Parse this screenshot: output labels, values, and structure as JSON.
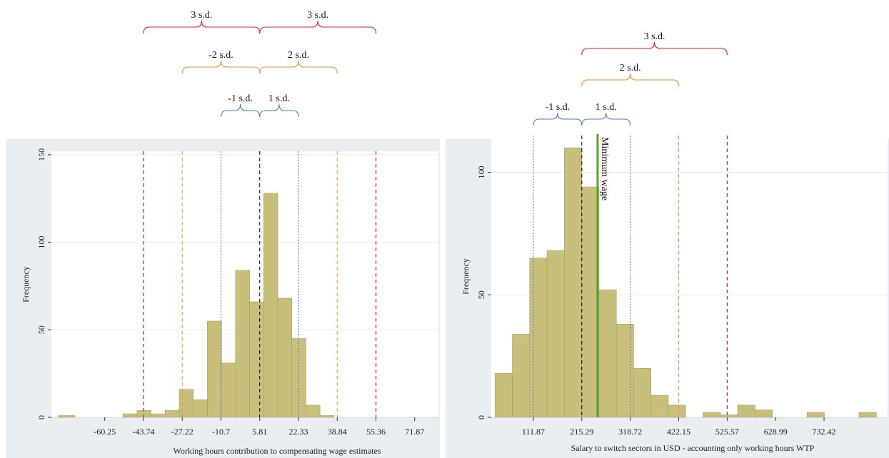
{
  "colors": {
    "panel_bg": "#e8eef1",
    "plot_bg": "#ffffff",
    "bar_fill": "#c9bf7c",
    "bar_stroke": "#a89f5a",
    "grid": "#e6eaec",
    "red": "#e41a1c",
    "orange": "#f28e2b",
    "blue": "#4a7cc7",
    "black": "#000000",
    "green": "#5aa02c"
  },
  "chart_data": [
    {
      "type": "bar",
      "subtype": "histogram",
      "xlabel": "Working hours contribution to compensating wage estimates",
      "ylabel": "Frequency",
      "ylim": [
        0,
        152
      ],
      "yticks": [
        0,
        50,
        100,
        150
      ],
      "xlim": [
        -83,
        82
      ],
      "xticks": [
        -60.25,
        -43.74,
        -27.22,
        -10.7,
        5.81,
        22.33,
        38.84,
        55.36,
        71.87
      ],
      "xtick_labels": [
        "-60.25",
        "-43.74",
        "-27.22",
        "-10.7",
        "5.81",
        "22.33",
        "38.84",
        "55.36",
        "71.87"
      ],
      "grid": true,
      "bins": [
        {
          "x0": -80,
          "x1": -73,
          "count": 1
        },
        {
          "x0": -52.5,
          "x1": -46.5,
          "count": 2
        },
        {
          "x0": -46.5,
          "x1": -40.5,
          "count": 4
        },
        {
          "x0": -40.5,
          "x1": -34.5,
          "count": 2
        },
        {
          "x0": -34.5,
          "x1": -28.5,
          "count": 4
        },
        {
          "x0": -28.5,
          "x1": -22.5,
          "count": 16
        },
        {
          "x0": -22.5,
          "x1": -16.5,
          "count": 10
        },
        {
          "x0": -16.5,
          "x1": -10.5,
          "count": 55
        },
        {
          "x0": -10.5,
          "x1": -4.5,
          "count": 31
        },
        {
          "x0": -4.5,
          "x1": 1.5,
          "count": 84
        },
        {
          "x0": 1.5,
          "x1": 7.5,
          "count": 66
        },
        {
          "x0": 7.5,
          "x1": 13.5,
          "count": 128
        },
        {
          "x0": 13.5,
          "x1": 19.5,
          "count": 68
        },
        {
          "x0": 19.5,
          "x1": 25.5,
          "count": 45
        },
        {
          "x0": 25.5,
          "x1": 31.5,
          "count": 7
        },
        {
          "x0": 31.5,
          "x1": 37.5,
          "count": 1
        }
      ],
      "vlines": [
        {
          "x": -43.74,
          "color": "red",
          "style": "dashed",
          "width": 1.2
        },
        {
          "x": -27.22,
          "color": "orange",
          "style": "dashed",
          "width": 1
        },
        {
          "x": -10.7,
          "color": "blue",
          "style": "dotted",
          "width": 1
        },
        {
          "x": 5.81,
          "color": "black",
          "style": "dashed",
          "width": 1
        },
        {
          "x": 22.33,
          "color": "blue",
          "style": "dotted",
          "width": 1
        },
        {
          "x": 38.84,
          "color": "orange",
          "style": "dashed",
          "width": 1
        },
        {
          "x": 55.36,
          "color": "red",
          "style": "dashed",
          "width": 1.2
        }
      ],
      "braces": [
        {
          "x0": -43.74,
          "x1": 5.81,
          "level": 1,
          "color": "red",
          "label": "3 s.d."
        },
        {
          "x0": 5.81,
          "x1": 55.36,
          "level": 1,
          "color": "red",
          "label": "3 s.d."
        },
        {
          "x0": -27.22,
          "x1": 5.81,
          "level": 2,
          "color": "orange",
          "label": "-2 s.d."
        },
        {
          "x0": 5.81,
          "x1": 38.84,
          "level": 2,
          "color": "orange",
          "label": "2 s.d."
        },
        {
          "x0": -10.7,
          "x1": 5.81,
          "level": 3,
          "color": "blue",
          "label": "-1 s.d."
        },
        {
          "x0": 5.81,
          "x1": 22.33,
          "level": 3,
          "color": "blue",
          "label": "1 s.d."
        }
      ]
    },
    {
      "type": "bar",
      "subtype": "histogram",
      "xlabel": "Salary to switch sectors in USD  - accounting only working hours WTP",
      "ylabel": "Frequency",
      "ylim": [
        0,
        115
      ],
      "yticks": [
        0,
        50,
        100
      ],
      "xlim": [
        22,
        868
      ],
      "xticks": [
        111.87,
        215.29,
        318.72,
        422.15,
        525.57,
        628.99,
        732.42
      ],
      "xtick_labels": [
        "111.87",
        "215.29",
        "318.72",
        "422.15",
        "525.57",
        "628.99",
        "732.42"
      ],
      "grid": true,
      "bins": [
        {
          "x0": 30,
          "x1": 67,
          "count": 18
        },
        {
          "x0": 67,
          "x1": 104,
          "count": 34
        },
        {
          "x0": 104,
          "x1": 141,
          "count": 65
        },
        {
          "x0": 141,
          "x1": 178,
          "count": 68
        },
        {
          "x0": 178,
          "x1": 215,
          "count": 110
        },
        {
          "x0": 215,
          "x1": 252,
          "count": 94
        },
        {
          "x0": 252,
          "x1": 289,
          "count": 52
        },
        {
          "x0": 289,
          "x1": 326,
          "count": 38
        },
        {
          "x0": 326,
          "x1": 363,
          "count": 20
        },
        {
          "x0": 363,
          "x1": 400,
          "count": 9
        },
        {
          "x0": 400,
          "x1": 437,
          "count": 5
        },
        {
          "x0": 474,
          "x1": 511,
          "count": 2
        },
        {
          "x0": 511,
          "x1": 548,
          "count": 1
        },
        {
          "x0": 548,
          "x1": 585,
          "count": 5
        },
        {
          "x0": 585,
          "x1": 622,
          "count": 3
        },
        {
          "x0": 696,
          "x1": 733,
          "count": 2
        },
        {
          "x0": 807,
          "x1": 844,
          "count": 2
        }
      ],
      "vlines": [
        {
          "x": 111.87,
          "color": "blue",
          "style": "dotted",
          "width": 1
        },
        {
          "x": 215.29,
          "color": "black",
          "style": "dashed",
          "width": 1
        },
        {
          "x": 318.72,
          "color": "blue",
          "style": "dotted",
          "width": 1
        },
        {
          "x": 422.15,
          "color": "orange",
          "style": "dashed",
          "width": 1
        },
        {
          "x": 525.57,
          "color": "red",
          "style": "dashed",
          "width": 1.2
        },
        {
          "x": 249,
          "color": "green",
          "style": "solid",
          "width": 3,
          "label": "Minimum wage",
          "extends_above": true
        }
      ],
      "braces": [
        {
          "x0": 215.29,
          "x1": 525.57,
          "level": 1,
          "color": "red",
          "label": "3 s.d."
        },
        {
          "x0": 215.29,
          "x1": 422.15,
          "level": 2,
          "color": "orange",
          "label": "2 s.d."
        },
        {
          "x0": 111.87,
          "x1": 215.29,
          "level": 3,
          "color": "blue",
          "label": "-1 s.d."
        },
        {
          "x0": 215.29,
          "x1": 318.72,
          "level": 3,
          "color": "blue",
          "label": "1 s.d."
        }
      ]
    }
  ]
}
